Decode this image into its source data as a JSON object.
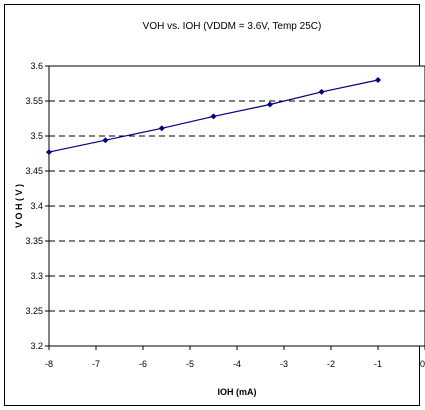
{
  "chart_data": {
    "type": "line",
    "title": "VOH vs. IOH (VDDM = 3.6V, Temp 25C)",
    "xlabel": "IOH (mA)",
    "ylabel": "V O H  ( V )",
    "xlim": [
      -8,
      0
    ],
    "ylim": [
      3.2,
      3.6
    ],
    "x_ticks": [
      "-8",
      "-7",
      "-6",
      "-5",
      "-4",
      "-3",
      "-2",
      "-1",
      "0"
    ],
    "y_ticks": [
      "3.2",
      "3.25",
      "3.3",
      "3.35",
      "3.4",
      "3.45",
      "3.5",
      "3.55",
      "3.6"
    ],
    "grid": "dashed horizontal",
    "series": [
      {
        "color": "#000080",
        "x": [
          -8,
          -6.8,
          -5.6,
          -4.5,
          -3.3,
          -2.2,
          -1
        ],
        "y": [
          3.477,
          3.494,
          3.511,
          3.528,
          3.545,
          3.563,
          3.58
        ]
      }
    ]
  }
}
